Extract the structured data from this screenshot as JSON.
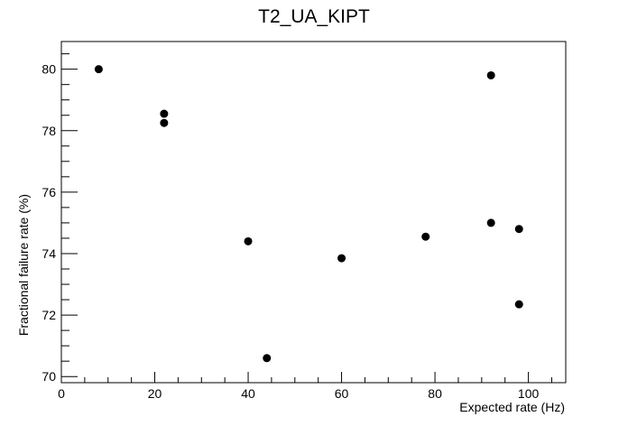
{
  "chart_data": {
    "type": "scatter",
    "title": "T2_UA_KIPT",
    "xlabel": "Expected rate (Hz)",
    "ylabel": "Fractional failure rate (%)",
    "xlim": [
      0,
      108
    ],
    "ylim": [
      69.8,
      80.9
    ],
    "x_ticks": [
      "0",
      "20",
      "40",
      "60",
      "80",
      "100"
    ],
    "y_ticks": [
      "70",
      "72",
      "74",
      "76",
      "78",
      "80"
    ],
    "grid": false,
    "series": [
      {
        "points": [
          {
            "x": 8,
            "y": 80.0
          },
          {
            "x": 22,
            "y": 78.55
          },
          {
            "x": 22,
            "y": 78.25
          },
          {
            "x": 40,
            "y": 74.4
          },
          {
            "x": 44,
            "y": 70.6
          },
          {
            "x": 60,
            "y": 73.85
          },
          {
            "x": 78,
            "y": 74.55
          },
          {
            "x": 92,
            "y": 79.8
          },
          {
            "x": 92,
            "y": 75.0
          },
          {
            "x": 98,
            "y": 74.8
          },
          {
            "x": 98,
            "y": 72.35
          }
        ]
      }
    ]
  }
}
